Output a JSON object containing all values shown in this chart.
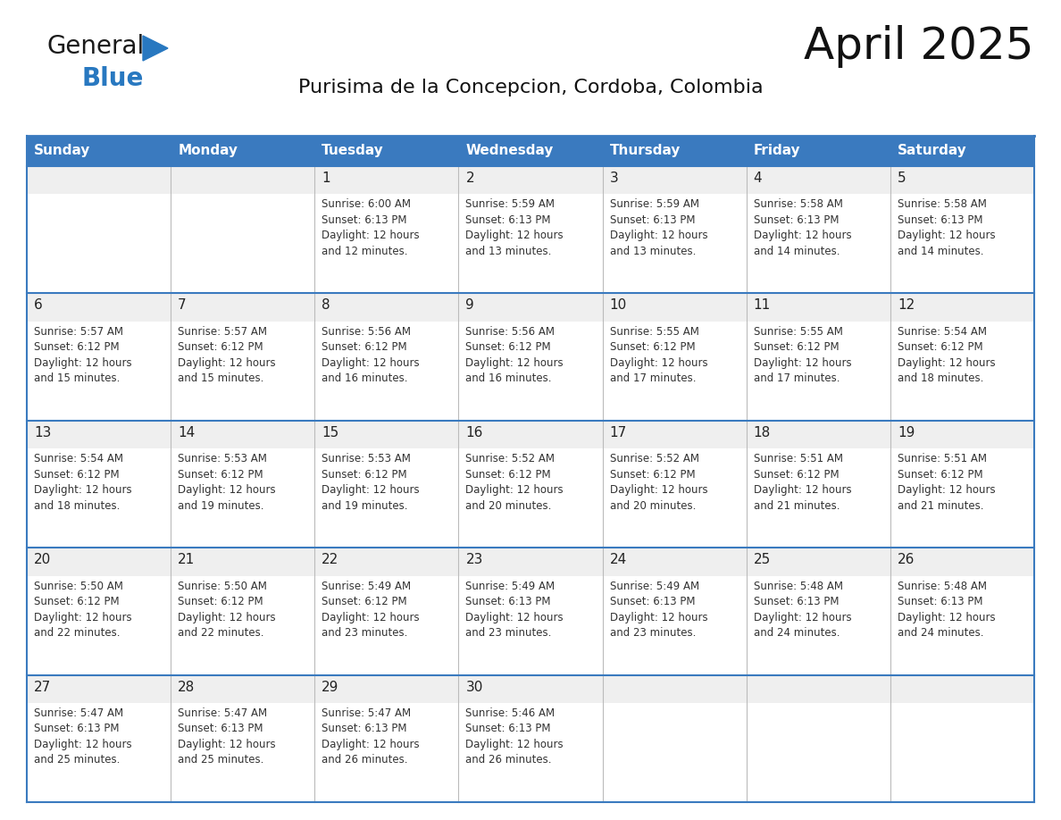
{
  "title": "April 2025",
  "subtitle": "Purisima de la Concepcion, Cordoba, Colombia",
  "header_bg_color": "#3a7abf",
  "header_text_color": "#ffffff",
  "border_color": "#3a7abf",
  "cell_border_color": "#3a7abf",
  "text_color": "#333333",
  "day_num_color": "#222222",
  "days_of_week": [
    "Sunday",
    "Monday",
    "Tuesday",
    "Wednesday",
    "Thursday",
    "Friday",
    "Saturday"
  ],
  "weeks": [
    [
      {
        "day": "",
        "info": ""
      },
      {
        "day": "",
        "info": ""
      },
      {
        "day": "1",
        "info": "Sunrise: 6:00 AM\nSunset: 6:13 PM\nDaylight: 12 hours\nand 12 minutes."
      },
      {
        "day": "2",
        "info": "Sunrise: 5:59 AM\nSunset: 6:13 PM\nDaylight: 12 hours\nand 13 minutes."
      },
      {
        "day": "3",
        "info": "Sunrise: 5:59 AM\nSunset: 6:13 PM\nDaylight: 12 hours\nand 13 minutes."
      },
      {
        "day": "4",
        "info": "Sunrise: 5:58 AM\nSunset: 6:13 PM\nDaylight: 12 hours\nand 14 minutes."
      },
      {
        "day": "5",
        "info": "Sunrise: 5:58 AM\nSunset: 6:13 PM\nDaylight: 12 hours\nand 14 minutes."
      }
    ],
    [
      {
        "day": "6",
        "info": "Sunrise: 5:57 AM\nSunset: 6:12 PM\nDaylight: 12 hours\nand 15 minutes."
      },
      {
        "day": "7",
        "info": "Sunrise: 5:57 AM\nSunset: 6:12 PM\nDaylight: 12 hours\nand 15 minutes."
      },
      {
        "day": "8",
        "info": "Sunrise: 5:56 AM\nSunset: 6:12 PM\nDaylight: 12 hours\nand 16 minutes."
      },
      {
        "day": "9",
        "info": "Sunrise: 5:56 AM\nSunset: 6:12 PM\nDaylight: 12 hours\nand 16 minutes."
      },
      {
        "day": "10",
        "info": "Sunrise: 5:55 AM\nSunset: 6:12 PM\nDaylight: 12 hours\nand 17 minutes."
      },
      {
        "day": "11",
        "info": "Sunrise: 5:55 AM\nSunset: 6:12 PM\nDaylight: 12 hours\nand 17 minutes."
      },
      {
        "day": "12",
        "info": "Sunrise: 5:54 AM\nSunset: 6:12 PM\nDaylight: 12 hours\nand 18 minutes."
      }
    ],
    [
      {
        "day": "13",
        "info": "Sunrise: 5:54 AM\nSunset: 6:12 PM\nDaylight: 12 hours\nand 18 minutes."
      },
      {
        "day": "14",
        "info": "Sunrise: 5:53 AM\nSunset: 6:12 PM\nDaylight: 12 hours\nand 19 minutes."
      },
      {
        "day": "15",
        "info": "Sunrise: 5:53 AM\nSunset: 6:12 PM\nDaylight: 12 hours\nand 19 minutes."
      },
      {
        "day": "16",
        "info": "Sunrise: 5:52 AM\nSunset: 6:12 PM\nDaylight: 12 hours\nand 20 minutes."
      },
      {
        "day": "17",
        "info": "Sunrise: 5:52 AM\nSunset: 6:12 PM\nDaylight: 12 hours\nand 20 minutes."
      },
      {
        "day": "18",
        "info": "Sunrise: 5:51 AM\nSunset: 6:12 PM\nDaylight: 12 hours\nand 21 minutes."
      },
      {
        "day": "19",
        "info": "Sunrise: 5:51 AM\nSunset: 6:12 PM\nDaylight: 12 hours\nand 21 minutes."
      }
    ],
    [
      {
        "day": "20",
        "info": "Sunrise: 5:50 AM\nSunset: 6:12 PM\nDaylight: 12 hours\nand 22 minutes."
      },
      {
        "day": "21",
        "info": "Sunrise: 5:50 AM\nSunset: 6:12 PM\nDaylight: 12 hours\nand 22 minutes."
      },
      {
        "day": "22",
        "info": "Sunrise: 5:49 AM\nSunset: 6:12 PM\nDaylight: 12 hours\nand 23 minutes."
      },
      {
        "day": "23",
        "info": "Sunrise: 5:49 AM\nSunset: 6:13 PM\nDaylight: 12 hours\nand 23 minutes."
      },
      {
        "day": "24",
        "info": "Sunrise: 5:49 AM\nSunset: 6:13 PM\nDaylight: 12 hours\nand 23 minutes."
      },
      {
        "day": "25",
        "info": "Sunrise: 5:48 AM\nSunset: 6:13 PM\nDaylight: 12 hours\nand 24 minutes."
      },
      {
        "day": "26",
        "info": "Sunrise: 5:48 AM\nSunset: 6:13 PM\nDaylight: 12 hours\nand 24 minutes."
      }
    ],
    [
      {
        "day": "27",
        "info": "Sunrise: 5:47 AM\nSunset: 6:13 PM\nDaylight: 12 hours\nand 25 minutes."
      },
      {
        "day": "28",
        "info": "Sunrise: 5:47 AM\nSunset: 6:13 PM\nDaylight: 12 hours\nand 25 minutes."
      },
      {
        "day": "29",
        "info": "Sunrise: 5:47 AM\nSunset: 6:13 PM\nDaylight: 12 hours\nand 26 minutes."
      },
      {
        "day": "30",
        "info": "Sunrise: 5:46 AM\nSunset: 6:13 PM\nDaylight: 12 hours\nand 26 minutes."
      },
      {
        "day": "",
        "info": ""
      },
      {
        "day": "",
        "info": ""
      },
      {
        "day": "",
        "info": ""
      }
    ]
  ],
  "logo_text_general": "General",
  "logo_text_blue": "Blue",
  "logo_color_general": "#1a1a1a",
  "logo_color_blue": "#2878c0",
  "logo_triangle_color": "#2878c0",
  "title_fontsize": 36,
  "subtitle_fontsize": 16,
  "header_fontsize": 11,
  "day_num_fontsize": 11,
  "info_fontsize": 8.5
}
